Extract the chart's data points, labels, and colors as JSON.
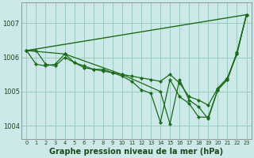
{
  "background_color": "#cce8e8",
  "grid_color": "#99ccbb",
  "line_color": "#1a6b1a",
  "title": "Graphe pression niveau de la mer (hPa)",
  "xlim": [
    -0.5,
    23.5
  ],
  "ylim": [
    1003.6,
    1007.6
  ],
  "yticks": [
    1004,
    1005,
    1006,
    1007
  ],
  "xtick_labels": [
    "0",
    "1",
    "2",
    "3",
    "4",
    "5",
    "6",
    "7",
    "8",
    "9",
    "10",
    "11",
    "12",
    "13",
    "14",
    "15",
    "16",
    "17",
    "18",
    "19",
    "20",
    "21",
    "22",
    "23"
  ],
  "series": [
    {
      "x": [
        0,
        23
      ],
      "y": [
        1006.2,
        1007.25
      ],
      "marker": null,
      "markersize": 0,
      "linewidth": 1.0
    },
    {
      "x": [
        0,
        1,
        2,
        3,
        4,
        5,
        6,
        7,
        8,
        9,
        10,
        11,
        12,
        13,
        14,
        15,
        16,
        17,
        18,
        19,
        20,
        21,
        22,
        23
      ],
      "y": [
        1006.2,
        1005.8,
        1005.75,
        1005.8,
        1006.1,
        1005.85,
        1005.75,
        1005.65,
        1005.6,
        1005.55,
        1005.45,
        1005.3,
        1005.05,
        1004.95,
        1004.1,
        1005.35,
        1004.85,
        1004.65,
        1004.25,
        1004.25,
        1005.05,
        1005.35,
        1006.15,
        1007.25
      ],
      "marker": "D",
      "markersize": 2.2,
      "linewidth": 0.9
    },
    {
      "x": [
        0,
        1,
        2,
        3,
        4,
        5,
        6,
        7,
        8,
        9,
        10,
        11,
        12,
        13,
        14,
        15,
        16,
        17,
        18,
        19,
        20,
        21,
        22,
        23
      ],
      "y": [
        1006.2,
        1006.2,
        1005.8,
        1005.75,
        1006.0,
        1005.85,
        1005.7,
        1005.65,
        1005.65,
        1005.55,
        1005.5,
        1005.45,
        1005.4,
        1005.35,
        1005.3,
        1005.5,
        1005.25,
        1004.85,
        1004.75,
        1004.6,
        1005.1,
        1005.4,
        1006.1,
        1007.25
      ],
      "marker": "D",
      "markersize": 2.2,
      "linewidth": 0.9
    },
    {
      "x": [
        0,
        4,
        10,
        14,
        15,
        16,
        17,
        18,
        19,
        20,
        21,
        22,
        23
      ],
      "y": [
        1006.2,
        1006.1,
        1005.5,
        1005.0,
        1004.05,
        1005.35,
        1004.75,
        1004.55,
        1004.2,
        1005.05,
        1005.35,
        1006.1,
        1007.25
      ],
      "marker": "D",
      "markersize": 2.2,
      "linewidth": 0.9
    }
  ]
}
